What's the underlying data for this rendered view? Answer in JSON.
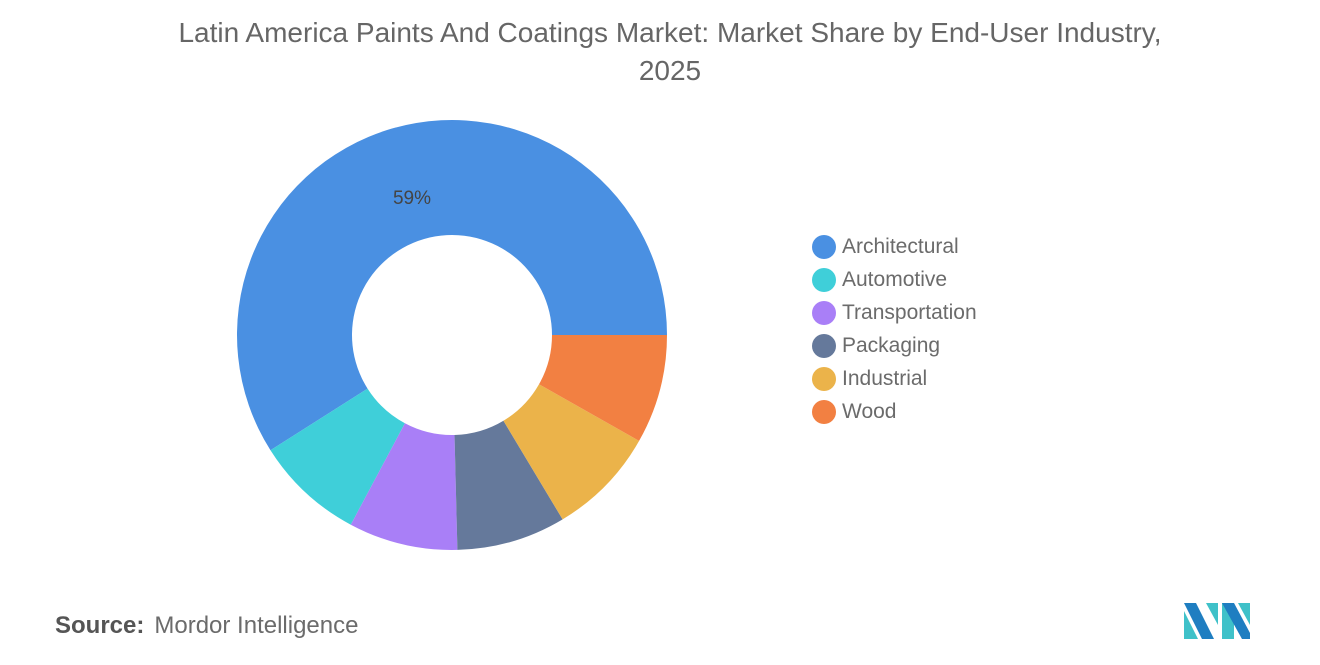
{
  "title": "Latin America Paints And Coatings Market: Market Share by End-User Industry, 2025",
  "source_label": "Source:",
  "source_value": "Mordor Intelligence",
  "chart_data": {
    "type": "pie",
    "donut": true,
    "title": "Latin America Paints And Coatings Market: Market Share by End-User Industry, 2025",
    "categories": [
      "Architectural",
      "Automotive",
      "Transportation",
      "Packaging",
      "Industrial",
      "Wood"
    ],
    "values": [
      59,
      8.2,
      8.2,
      8.2,
      8.2,
      8.2
    ],
    "data_labels": [
      "59%",
      "",
      "",
      "",
      "",
      ""
    ],
    "colors": [
      "#4a90e2",
      "#3fcfd9",
      "#a97ff7",
      "#65799b",
      "#ebb34a",
      "#f28042"
    ],
    "legend_position": "right"
  },
  "logo": {
    "text": "Mordor Intelligence",
    "colors": [
      "#1f7ec1",
      "#3fc1c9"
    ]
  }
}
